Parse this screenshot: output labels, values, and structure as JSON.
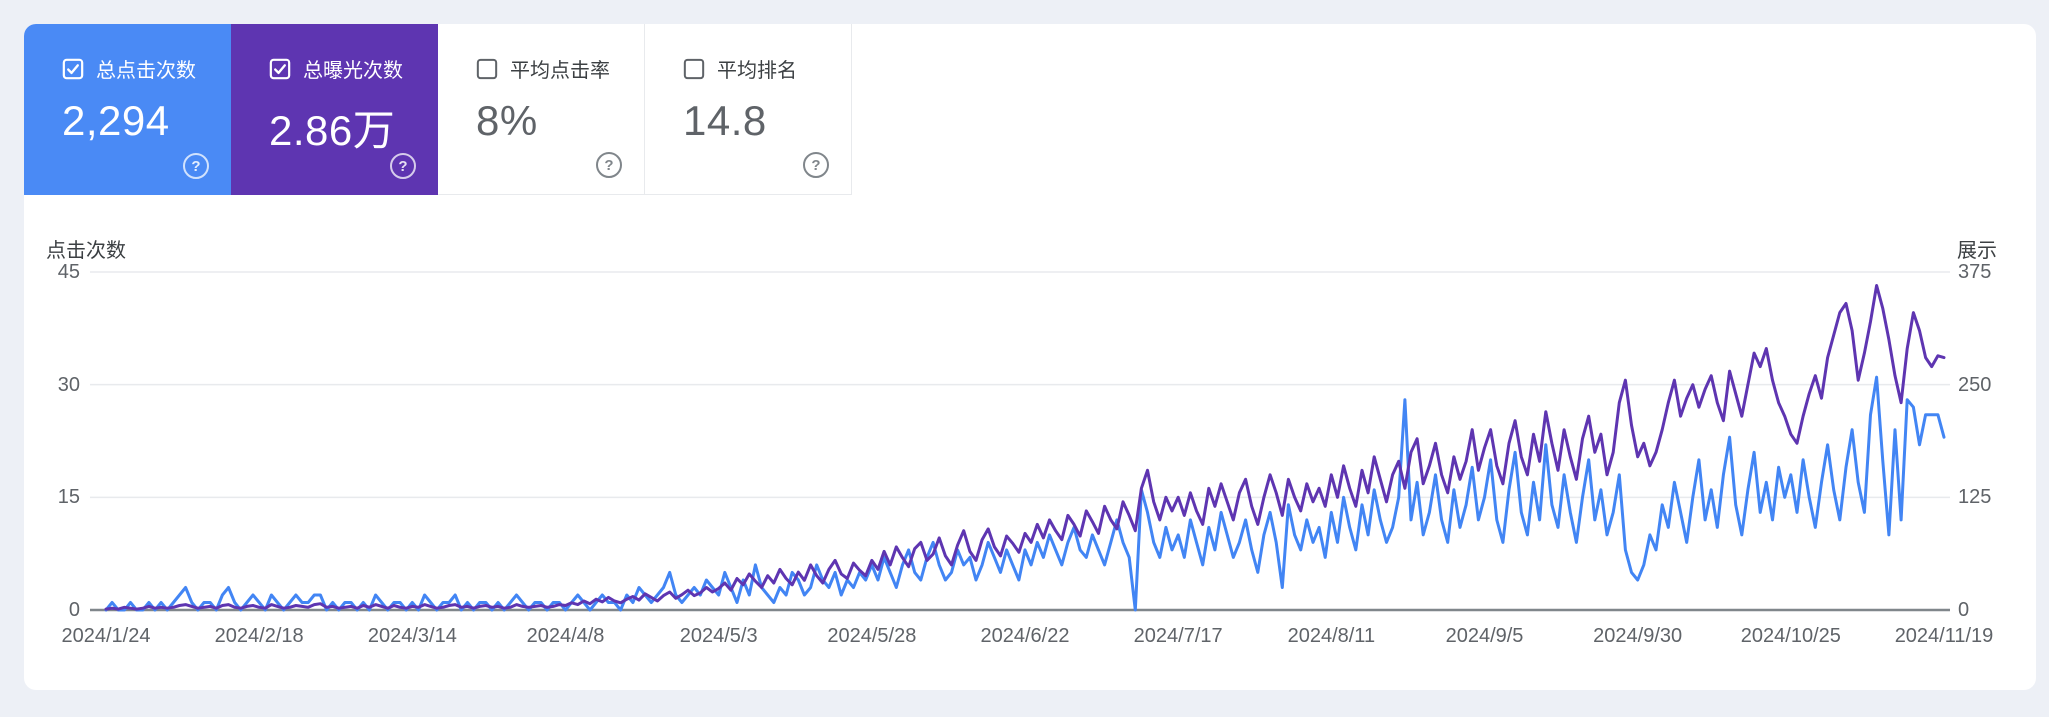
{
  "cards": [
    {
      "label": "总点击次数",
      "value": "2,294",
      "checked": true,
      "bg": "#4a8af5",
      "help_glyph": "?"
    },
    {
      "label": "总曝光次数",
      "value": "2.86万",
      "checked": true,
      "bg": "#5e35b1",
      "help_glyph": "?"
    },
    {
      "label": "平均点击率",
      "value": "8%",
      "checked": false,
      "bg": "#ffffff",
      "help_glyph": "?"
    },
    {
      "label": "平均排名",
      "value": "14.8",
      "checked": false,
      "bg": "#ffffff",
      "help_glyph": "?"
    }
  ],
  "colors": {
    "clicks_line": "#4285f4",
    "impressions_line": "#5e35b1",
    "grid": "#e8eaed",
    "zero_axis": "#80868b",
    "tick_text": "#5f6368"
  },
  "chart_data": {
    "type": "line",
    "title": "",
    "left_axis": {
      "title": "点击次数",
      "ticks": [
        45,
        30,
        15,
        0
      ],
      "max": 45
    },
    "right_axis": {
      "title": "展示",
      "ticks": [
        375,
        250,
        125,
        0
      ],
      "max": 375
    },
    "x_start": "2024/1/24",
    "x_end": "2024/11/19",
    "x_tick_labels": [
      "2024/1/24",
      "2024/2/18",
      "2024/3/14",
      "2024/4/8",
      "2024/5/3",
      "2024/5/28",
      "2024/6/22",
      "2024/7/17",
      "2024/8/11",
      "2024/9/5",
      "2024/9/30",
      "2024/10/25",
      "2024/11/19"
    ],
    "x_tick_day_indices": [
      0,
      25,
      50,
      75,
      100,
      125,
      150,
      175,
      200,
      225,
      250,
      275,
      300
    ],
    "grid": true,
    "legend_position": "none",
    "series": [
      {
        "name": "总点击次数",
        "axis": "left",
        "color": "#4285f4",
        "values": [
          0,
          1,
          0,
          0,
          1,
          0,
          0,
          1,
          0,
          1,
          0,
          1,
          2,
          3,
          1,
          0,
          1,
          1,
          0,
          2,
          3,
          1,
          0,
          1,
          2,
          1,
          0,
          2,
          1,
          0,
          1,
          2,
          1,
          1,
          2,
          2,
          0,
          1,
          0,
          1,
          1,
          0,
          1,
          0,
          2,
          1,
          0,
          1,
          1,
          0,
          1,
          0,
          2,
          1,
          0,
          1,
          1,
          2,
          0,
          1,
          0,
          1,
          1,
          0,
          1,
          0,
          1,
          2,
          1,
          0,
          1,
          1,
          0,
          1,
          1,
          0,
          1,
          2,
          1,
          0,
          1,
          2,
          1,
          1,
          0,
          2,
          1,
          3,
          2,
          1,
          2,
          3,
          5,
          2,
          1,
          2,
          3,
          2,
          4,
          3,
          2,
          5,
          3,
          1,
          4,
          2,
          6,
          3,
          2,
          1,
          3,
          2,
          5,
          4,
          2,
          3,
          6,
          4,
          3,
          5,
          2,
          4,
          3,
          5,
          4,
          6,
          4,
          7,
          5,
          3,
          6,
          8,
          5,
          4,
          7,
          9,
          6,
          4,
          5,
          8,
          6,
          7,
          4,
          6,
          9,
          7,
          5,
          8,
          6,
          4,
          8,
          6,
          9,
          7,
          10,
          8,
          6,
          9,
          11,
          8,
          7,
          10,
          8,
          6,
          9,
          12,
          9,
          7,
          0,
          16,
          13,
          9,
          7,
          11,
          8,
          10,
          7,
          12,
          9,
          6,
          11,
          8,
          13,
          10,
          7,
          9,
          12,
          8,
          5,
          10,
          13,
          9,
          3,
          14,
          10,
          8,
          12,
          9,
          11,
          7,
          13,
          9,
          15,
          11,
          8,
          14,
          10,
          16,
          12,
          9,
          11,
          15,
          28,
          12,
          17,
          10,
          13,
          18,
          12,
          9,
          16,
          11,
          14,
          19,
          12,
          15,
          20,
          12,
          9,
          16,
          21,
          13,
          10,
          17,
          12,
          22,
          14,
          11,
          18,
          13,
          9,
          15,
          20,
          12,
          16,
          10,
          13,
          18,
          8,
          5,
          4,
          6,
          10,
          8,
          14,
          11,
          17,
          13,
          9,
          15,
          20,
          12,
          16,
          11,
          18,
          23,
          14,
          10,
          16,
          21,
          13,
          17,
          12,
          19,
          15,
          18,
          13,
          20,
          15,
          11,
          17,
          22,
          16,
          12,
          19,
          24,
          17,
          13,
          26,
          31,
          20,
          10,
          24,
          12,
          28,
          27,
          22,
          26,
          26,
          26,
          23
        ]
      },
      {
        "name": "总曝光次数",
        "axis": "right",
        "color": "#5e35b1",
        "values": [
          1,
          2,
          1,
          3,
          2,
          1,
          2,
          4,
          2,
          3,
          2,
          3,
          5,
          6,
          4,
          2,
          3,
          4,
          2,
          5,
          6,
          3,
          2,
          4,
          5,
          3,
          2,
          6,
          4,
          2,
          3,
          5,
          4,
          3,
          6,
          7,
          3,
          4,
          2,
          3,
          4,
          2,
          5,
          3,
          6,
          4,
          2,
          5,
          3,
          2,
          4,
          3,
          6,
          4,
          2,
          3,
          5,
          6,
          3,
          4,
          2,
          4,
          5,
          3,
          4,
          2,
          3,
          6,
          4,
          3,
          4,
          5,
          3,
          4,
          6,
          5,
          8,
          6,
          10,
          7,
          12,
          9,
          14,
          10,
          8,
          12,
          15,
          11,
          18,
          14,
          10,
          16,
          20,
          13,
          17,
          22,
          16,
          19,
          25,
          20,
          24,
          30,
          22,
          35,
          28,
          40,
          32,
          25,
          38,
          30,
          45,
          35,
          28,
          42,
          33,
          50,
          38,
          30,
          45,
          55,
          40,
          35,
          52,
          44,
          38,
          55,
          45,
          65,
          50,
          70,
          58,
          48,
          68,
          75,
          55,
          62,
          80,
          60,
          50,
          72,
          88,
          65,
          55,
          78,
          90,
          70,
          60,
          82,
          74,
          64,
          85,
          75,
          95,
          80,
          100,
          88,
          78,
          105,
          95,
          82,
          110,
          98,
          85,
          115,
          100,
          90,
          120,
          105,
          88,
          135,
          155,
          120,
          100,
          125,
          110,
          125,
          105,
          130,
          110,
          95,
          135,
          115,
          140,
          120,
          100,
          130,
          145,
          115,
          95,
          125,
          150,
          130,
          105,
          145,
          125,
          110,
          140,
          120,
          135,
          115,
          150,
          125,
          160,
          135,
          115,
          155,
          130,
          170,
          145,
          120,
          150,
          165,
          135,
          175,
          190,
          140,
          160,
          185,
          150,
          130,
          170,
          145,
          165,
          200,
          155,
          180,
          200,
          160,
          140,
          185,
          210,
          170,
          150,
          195,
          165,
          220,
          185,
          155,
          200,
          170,
          145,
          190,
          215,
          175,
          195,
          150,
          175,
          230,
          255,
          205,
          170,
          185,
          160,
          175,
          200,
          230,
          255,
          215,
          235,
          250,
          225,
          245,
          260,
          230,
          210,
          265,
          240,
          215,
          250,
          285,
          270,
          290,
          255,
          230,
          215,
          195,
          185,
          215,
          240,
          260,
          235,
          280,
          305,
          330,
          340,
          310,
          255,
          285,
          320,
          360,
          335,
          300,
          260,
          230,
          290,
          330,
          310,
          280,
          270,
          282,
          280
        ]
      }
    ]
  }
}
